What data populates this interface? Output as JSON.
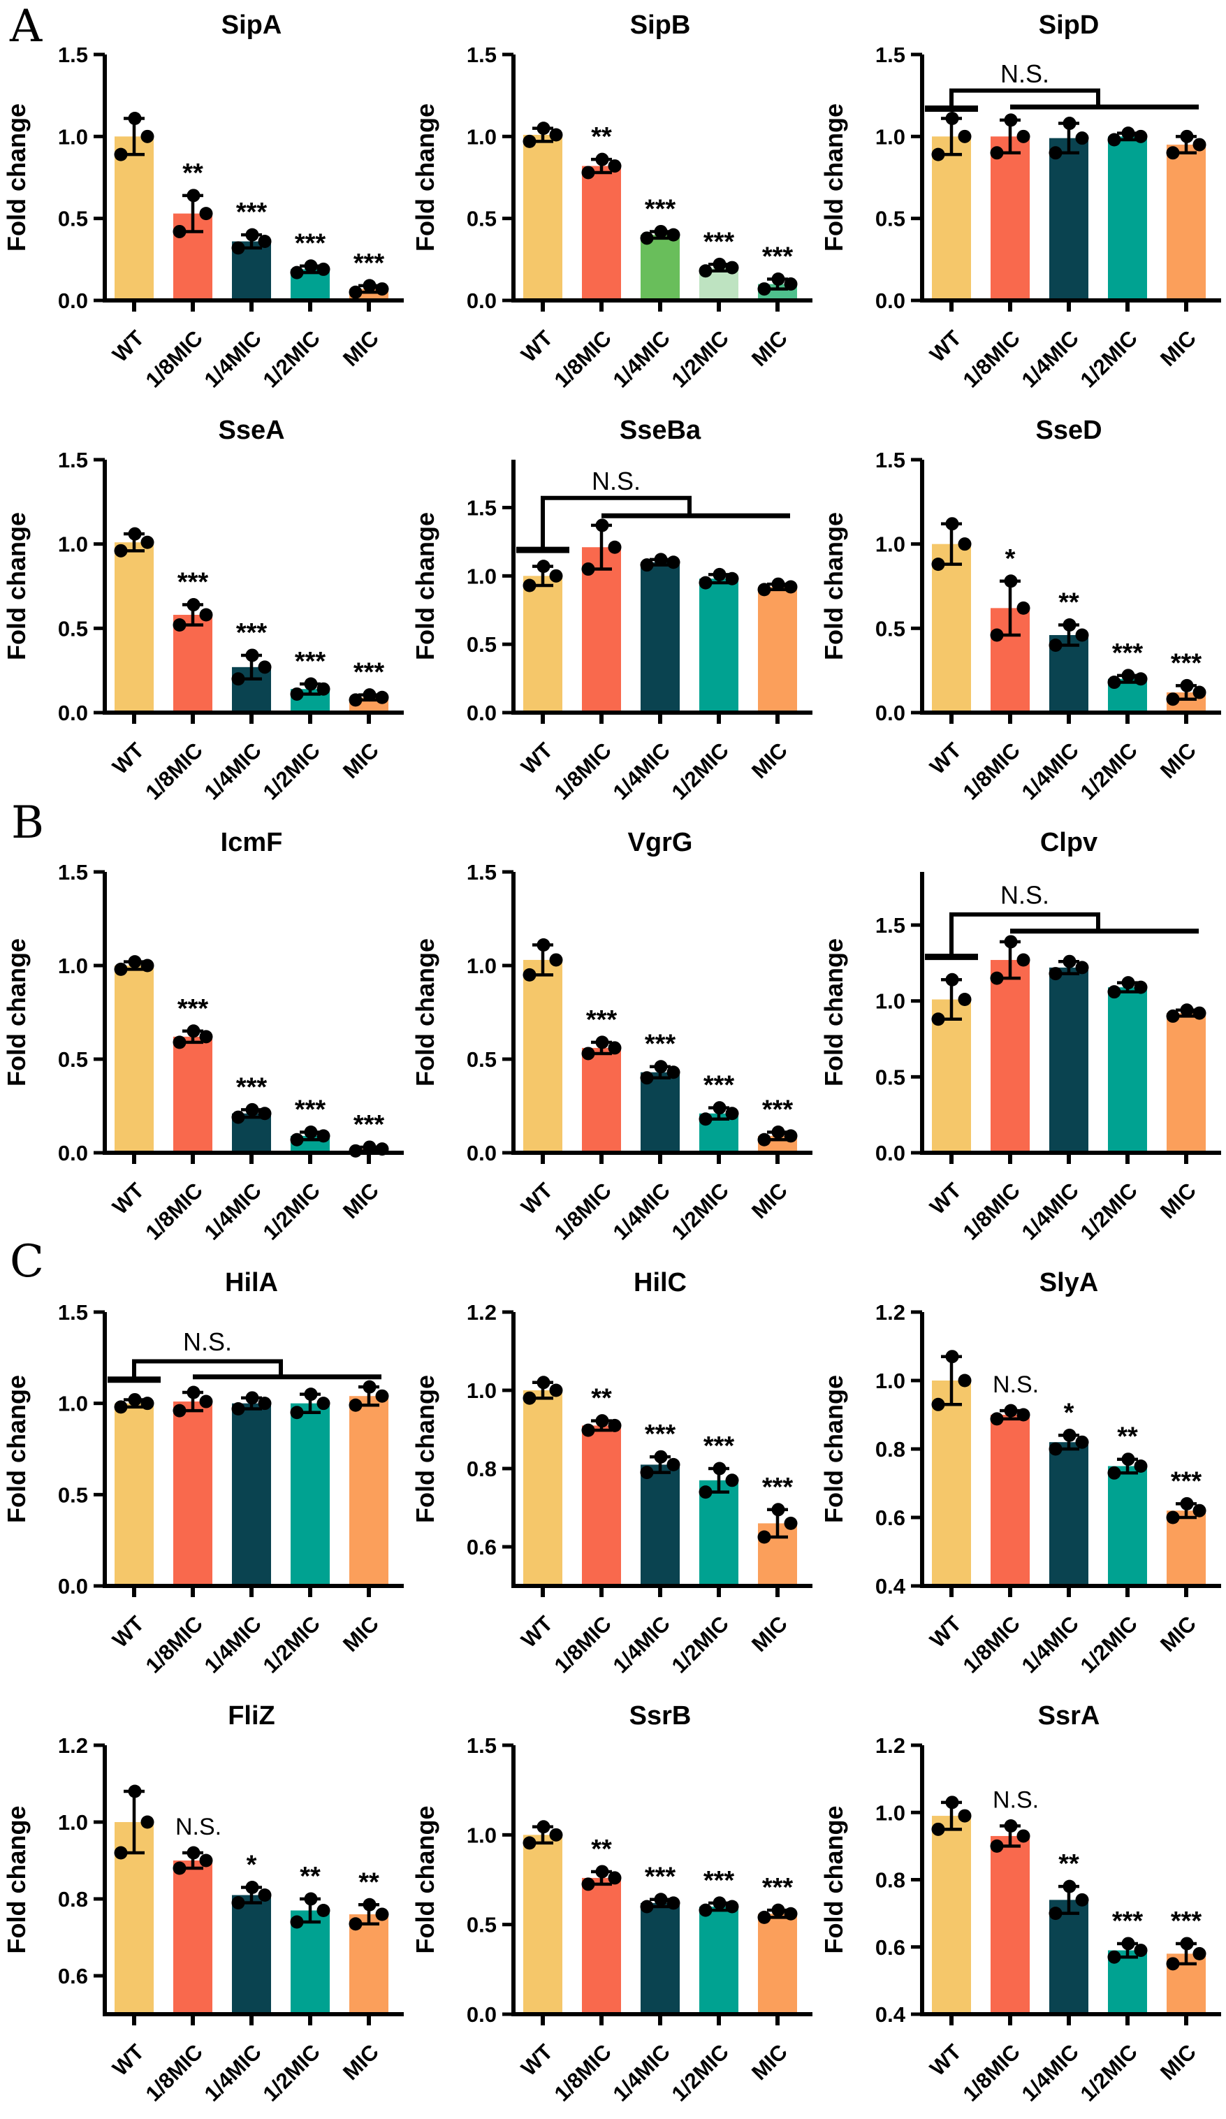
{
  "chart_data": {
    "type": "bar",
    "ylabel": "Fold change",
    "ns_label": "N.S.",
    "categories": [
      "WT",
      "1/8MIC",
      "1/4MIC",
      "1/2MIC",
      "MIC"
    ],
    "palette": [
      "#F5C76A",
      "#F9694D",
      "#0A4350",
      "#00A291",
      "#FB9F5B"
    ],
    "sipb_palette": [
      "#F5C76A",
      "#F9694D",
      "#69BE5B",
      "#BEE3C1",
      "#4FC08D"
    ],
    "dot_color": "#000000",
    "axis_color": "#000000",
    "panels": [
      {
        "label": "A",
        "charts": [
          {
            "title": "SipA",
            "values": [
              1.0,
              0.53,
              0.36,
              0.19,
              0.07
            ],
            "errors": [
              0.11,
              0.11,
              0.04,
              0.02,
              0.02
            ],
            "sig": [
              "",
              "**",
              "***",
              "***",
              "***"
            ],
            "ylim": [
              0,
              1.5
            ],
            "yticks": [
              0.0,
              0.5,
              1.0,
              1.5
            ]
          },
          {
            "title": "SipB",
            "values": [
              1.01,
              0.82,
              0.4,
              0.2,
              0.1
            ],
            "errors": [
              0.04,
              0.04,
              0.02,
              0.02,
              0.03
            ],
            "sig": [
              "",
              "**",
              "***",
              "***",
              "***"
            ],
            "ylim": [
              0,
              1.5
            ],
            "yticks": [
              0.0,
              0.5,
              1.0,
              1.5
            ],
            "use_green_palette": true
          },
          {
            "title": "SipD",
            "values": [
              1.0,
              1.0,
              0.99,
              1.0,
              0.95
            ],
            "errors": [
              0.11,
              0.1,
              0.09,
              0.02,
              0.05
            ],
            "sig": [
              "",
              "",
              "",
              "",
              ""
            ],
            "ylim": [
              0,
              1.5
            ],
            "yticks": [
              0.0,
              0.5,
              1.0,
              1.5
            ],
            "ns_bracket": {
              "wt_y": 1.17,
              "top_y": 1.28,
              "long_y": 1.18,
              "label_y": 1.33
            }
          },
          {
            "title": "SseA",
            "values": [
              1.01,
              0.58,
              0.27,
              0.14,
              0.09
            ],
            "errors": [
              0.05,
              0.06,
              0.07,
              0.03,
              0.015
            ],
            "sig": [
              "",
              "***",
              "***",
              "***",
              "***"
            ],
            "ylim": [
              0,
              1.5
            ],
            "yticks": [
              0.0,
              0.5,
              1.0,
              1.5
            ]
          },
          {
            "title": "SseBa",
            "values": [
              1.0,
              1.21,
              1.1,
              0.98,
              0.92
            ],
            "errors": [
              0.07,
              0.16,
              0.02,
              0.03,
              0.02
            ],
            "sig": [
              "",
              "",
              "",
              "",
              ""
            ],
            "ylim": [
              0,
              1.85
            ],
            "yticks": [
              0.0,
              0.5,
              1.0,
              1.5
            ],
            "ns_bracket": {
              "wt_y": 1.19,
              "top_y": 1.57,
              "long_y": 1.44,
              "label_y": 1.63
            }
          },
          {
            "title": "SseD",
            "values": [
              1.0,
              0.62,
              0.46,
              0.2,
              0.12
            ],
            "errors": [
              0.12,
              0.16,
              0.06,
              0.02,
              0.04
            ],
            "sig": [
              "",
              "*",
              "**",
              "***",
              "***"
            ],
            "ylim": [
              0,
              1.5
            ],
            "yticks": [
              0.0,
              0.5,
              1.0,
              1.5
            ]
          }
        ]
      },
      {
        "label": "B",
        "charts": [
          {
            "title": "IcmF",
            "values": [
              1.0,
              0.62,
              0.21,
              0.09,
              0.02
            ],
            "errors": [
              0.02,
              0.03,
              0.02,
              0.02,
              0.01
            ],
            "sig": [
              "",
              "***",
              "***",
              "***",
              "***"
            ],
            "ylim": [
              0,
              1.5
            ],
            "yticks": [
              0.0,
              0.5,
              1.0,
              1.5
            ]
          },
          {
            "title": "VgrG",
            "values": [
              1.03,
              0.56,
              0.43,
              0.21,
              0.09
            ],
            "errors": [
              0.08,
              0.03,
              0.03,
              0.03,
              0.02
            ],
            "sig": [
              "",
              "***",
              "***",
              "***",
              "***"
            ],
            "ylim": [
              0,
              1.5
            ],
            "yticks": [
              0.0,
              0.5,
              1.0,
              1.5
            ]
          },
          {
            "title": "Clpv",
            "values": [
              1.01,
              1.27,
              1.22,
              1.09,
              0.92
            ],
            "errors": [
              0.13,
              0.12,
              0.04,
              0.03,
              0.02
            ],
            "sig": [
              "",
              "",
              "",
              "",
              ""
            ],
            "ylim": [
              0,
              1.85
            ],
            "yticks": [
              0.0,
              0.5,
              1.0,
              1.5
            ],
            "ns_bracket": {
              "wt_y": 1.29,
              "top_y": 1.57,
              "long_y": 1.46,
              "label_y": 1.64
            }
          }
        ]
      },
      {
        "label": "C",
        "charts": [
          {
            "title": "HilA",
            "values": [
              1.0,
              1.01,
              1.0,
              1.0,
              1.04
            ],
            "errors": [
              0.02,
              0.05,
              0.03,
              0.05,
              0.05
            ],
            "sig": [
              "",
              "",
              "",
              "",
              ""
            ],
            "ylim": [
              0,
              1.5
            ],
            "yticks": [
              0.0,
              0.5,
              1.0,
              1.5
            ],
            "ns_bracket": {
              "wt_y": 1.13,
              "top_y": 1.23,
              "long_y": 1.145,
              "label_y": 1.29
            }
          },
          {
            "title": "HilC",
            "values": [
              1.0,
              0.91,
              0.81,
              0.77,
              0.66
            ],
            "errors": [
              0.02,
              0.012,
              0.02,
              0.03,
              0.035
            ],
            "sig": [
              "",
              "**",
              "***",
              "***",
              "***"
            ],
            "ylim": [
              0.5,
              1.2
            ],
            "yticks": [
              0.6,
              0.8,
              1.0,
              1.2
            ]
          },
          {
            "title": "SlyA",
            "values": [
              1.0,
              0.9,
              0.82,
              0.75,
              0.62
            ],
            "errors": [
              0.07,
              0.012,
              0.02,
              0.02,
              0.02
            ],
            "sig": [
              "",
              "N.S.",
              "*",
              "**",
              "***"
            ],
            "ylim": [
              0.4,
              1.2
            ],
            "yticks": [
              0.4,
              0.6,
              0.8,
              1.0,
              1.2
            ]
          },
          {
            "title": "FliZ",
            "values": [
              1.0,
              0.9,
              0.81,
              0.77,
              0.76
            ],
            "errors": [
              0.08,
              0.02,
              0.02,
              0.03,
              0.025
            ],
            "sig": [
              "",
              "N.S.",
              "*",
              "**",
              "**"
            ],
            "ylim": [
              0.5,
              1.2
            ],
            "yticks": [
              0.6,
              0.8,
              1.0,
              1.2
            ]
          },
          {
            "title": "SsrB",
            "values": [
              1.0,
              0.76,
              0.62,
              0.6,
              0.56
            ],
            "errors": [
              0.045,
              0.035,
              0.02,
              0.02,
              0.02
            ],
            "sig": [
              "",
              "**",
              "***",
              "***",
              "***"
            ],
            "ylim": [
              0,
              1.5
            ],
            "yticks": [
              0.0,
              0.5,
              1.0,
              1.5
            ]
          },
          {
            "title": "SsrA",
            "values": [
              0.99,
              0.93,
              0.74,
              0.59,
              0.58
            ],
            "errors": [
              0.04,
              0.03,
              0.04,
              0.02,
              0.03
            ],
            "sig": [
              "",
              "N.S.",
              "**",
              "***",
              "***"
            ],
            "ylim": [
              0.4,
              1.2
            ],
            "yticks": [
              0.4,
              0.6,
              0.8,
              1.0,
              1.2
            ]
          }
        ]
      }
    ]
  }
}
